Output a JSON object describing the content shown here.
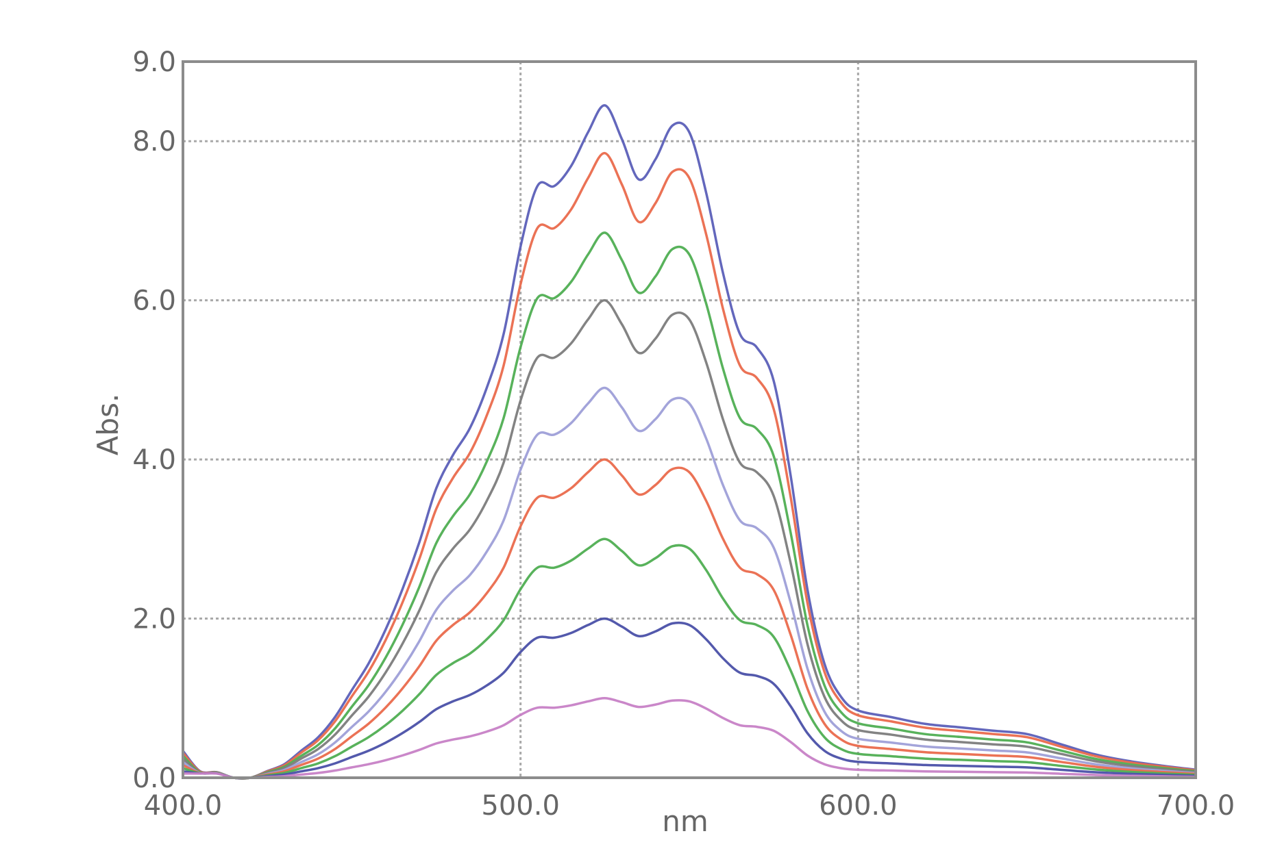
{
  "chart_data": {
    "type": "line",
    "title": "",
    "xlabel": "nm",
    "ylabel": "Abs.",
    "xlim": [
      400.0,
      700.0
    ],
    "ylim": [
      0.0,
      9.0
    ],
    "x_ticks": [
      400.0,
      500.0,
      600.0,
      700.0
    ],
    "x_tick_labels": [
      "400.0",
      "500.0",
      "600.0",
      "700.0"
    ],
    "y_ticks": [
      0.0,
      2.0,
      4.0,
      6.0,
      8.0,
      9.0
    ],
    "y_tick_labels": [
      "0.0",
      "2.0",
      "4.0",
      "6.0",
      "8.0",
      "9.0"
    ],
    "grid": true,
    "legend": "none",
    "x": [
      400,
      405,
      410,
      415,
      420,
      425,
      430,
      435,
      440,
      445,
      450,
      455,
      460,
      465,
      470,
      475,
      480,
      485,
      490,
      495,
      500,
      505,
      510,
      515,
      520,
      525,
      530,
      535,
      540,
      545,
      550,
      555,
      560,
      565,
      570,
      575,
      580,
      585,
      590,
      595,
      600,
      610,
      620,
      630,
      640,
      650,
      660,
      670,
      680,
      690,
      700
    ],
    "profile_unit": [
      0.04,
      0.01,
      0.0,
      0.0,
      0.0,
      0.01,
      0.02,
      0.04,
      0.06,
      0.09,
      0.13,
      0.17,
      0.22,
      0.28,
      0.35,
      0.43,
      0.48,
      0.52,
      0.58,
      0.66,
      0.79,
      0.88,
      0.88,
      0.91,
      0.96,
      1.0,
      0.95,
      0.89,
      0.92,
      0.97,
      0.96,
      0.87,
      0.75,
      0.66,
      0.64,
      0.59,
      0.45,
      0.28,
      0.17,
      0.12,
      0.1,
      0.09,
      0.08,
      0.075,
      0.07,
      0.065,
      0.05,
      0.035,
      0.025,
      0.018,
      0.012
    ],
    "series": [
      {
        "color": "#5b5fb8",
        "peak_abs": 8.45
      },
      {
        "color": "#ea6a4c",
        "peak_abs": 7.85
      },
      {
        "color": "#4fae52",
        "peak_abs": 6.85
      },
      {
        "color": "#7c7c7c",
        "peak_abs": 6.0
      },
      {
        "color": "#9e9fd8",
        "peak_abs": 4.9
      },
      {
        "color": "#ea6a4c",
        "peak_abs": 4.0
      },
      {
        "color": "#4fae52",
        "peak_abs": 3.0
      },
      {
        "color": "#4a50a8",
        "peak_abs": 2.0
      },
      {
        "color": "#c781c6",
        "peak_abs": 1.0
      }
    ]
  }
}
